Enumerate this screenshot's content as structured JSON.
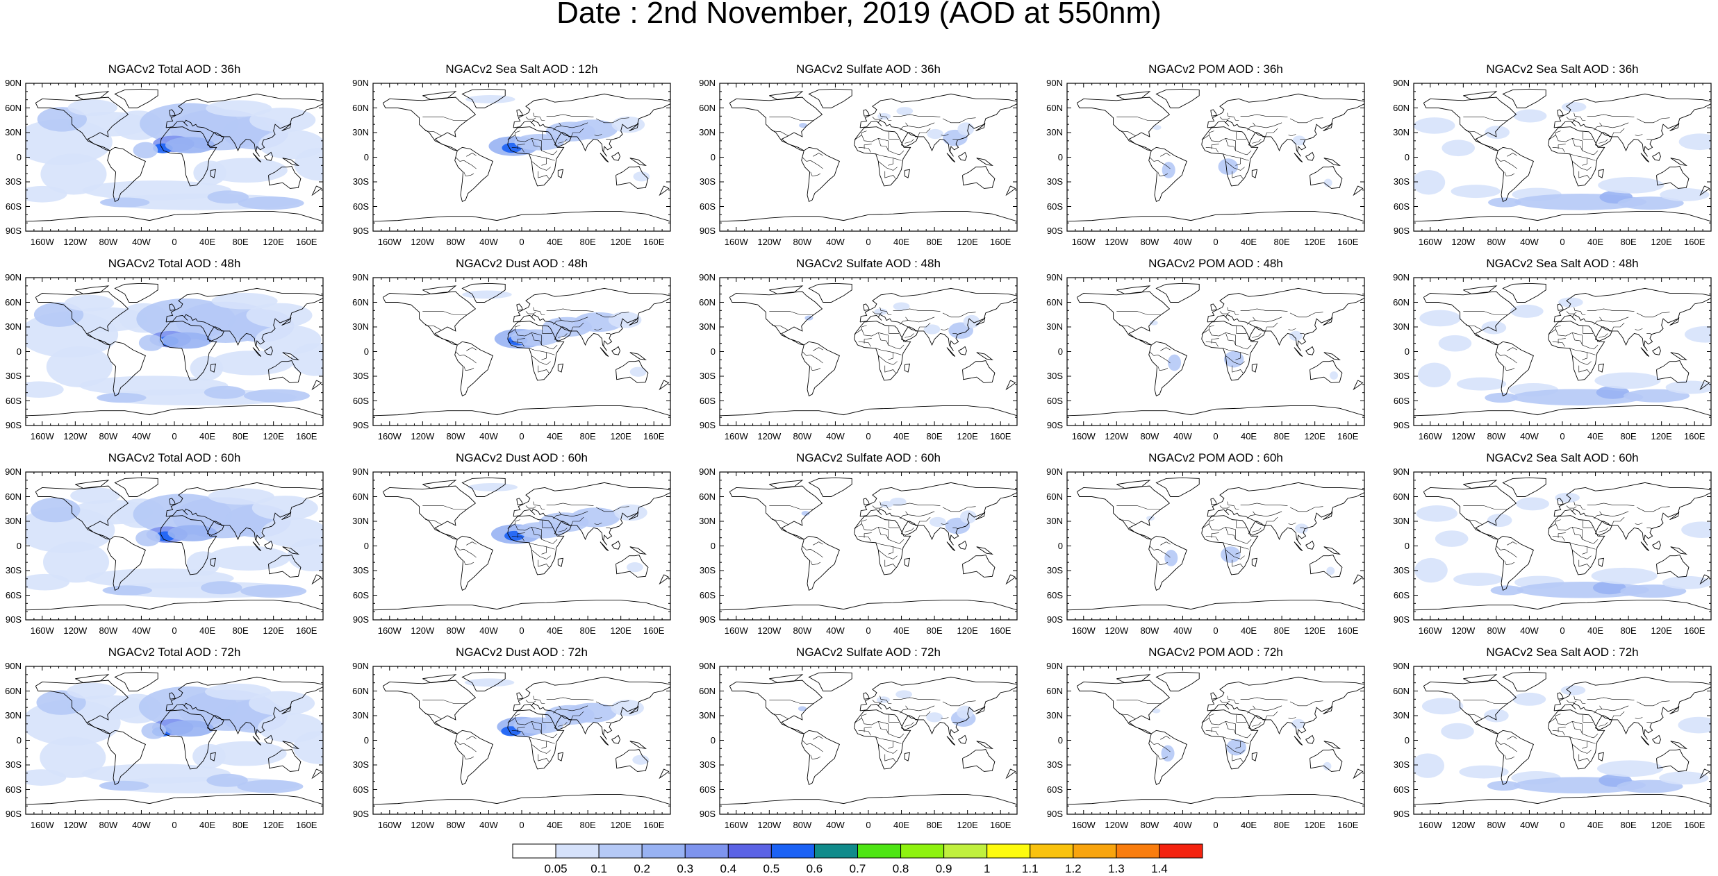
{
  "title": "Date : 2nd November, 2019 (AOD at 550nm)",
  "lat_labels": [
    "90N",
    "60N",
    "30N",
    "0",
    "30S",
    "60S",
    "90S"
  ],
  "lon_labels": [
    "160W",
    "120W",
    "80W",
    "40W",
    "0",
    "40E",
    "80E",
    "120E",
    "160E"
  ],
  "panels": [
    [
      "NGACv2 Total AOD : 36h",
      "NGACv2 Sea Salt  AOD : 12h",
      "NGACv2 Sulfate AOD : 36h",
      "NGACv2 POM AOD : 36h",
      "NGACv2 Sea Salt AOD : 36h"
    ],
    [
      "NGACv2 Total AOD : 48h",
      "NGACv2 Dust AOD : 48h",
      "NGACv2 Sulfate AOD : 48h",
      "NGACv2 POM AOD : 48h",
      "NGACv2 Sea Salt AOD : 48h"
    ],
    [
      "NGACv2 Total AOD : 60h",
      "NGACv2 Dust AOD : 60h",
      "NGACv2 Sulfate AOD : 60h",
      "NGACv2 POM AOD : 60h",
      "NGACv2 Sea Salt AOD : 60h"
    ],
    [
      "NGACv2 Total AOD : 72h",
      "NGACv2 Dust AOD : 72h",
      "NGACv2 Sulfate AOD : 72h",
      "NGACv2 POM AOD : 72h",
      "NGACv2 Sea Salt  AOD : 72h"
    ]
  ],
  "colorbar": {
    "labels": [
      "0.05",
      "0.1",
      "0.2",
      "0.3",
      "0.4",
      "0.5",
      "0.6",
      "0.7",
      "0.8",
      "0.9",
      "1",
      "1.1",
      "1.2",
      "1.3",
      "1.4"
    ],
    "colors": [
      "#ffffff",
      "#d6e2fb",
      "#b5c9f6",
      "#98b2f3",
      "#7e94ee",
      "#5b63e5",
      "#1b62f5",
      "#108b8b",
      "#4ee514",
      "#8ef20f",
      "#c0f03e",
      "#fdfb0e",
      "#f9c20e",
      "#f8a40e",
      "#f97d0e",
      "#f4230f"
    ]
  },
  "panel_types": [
    "total",
    "seasalt_light",
    "sulfate",
    "pom",
    "seasalt"
  ]
}
